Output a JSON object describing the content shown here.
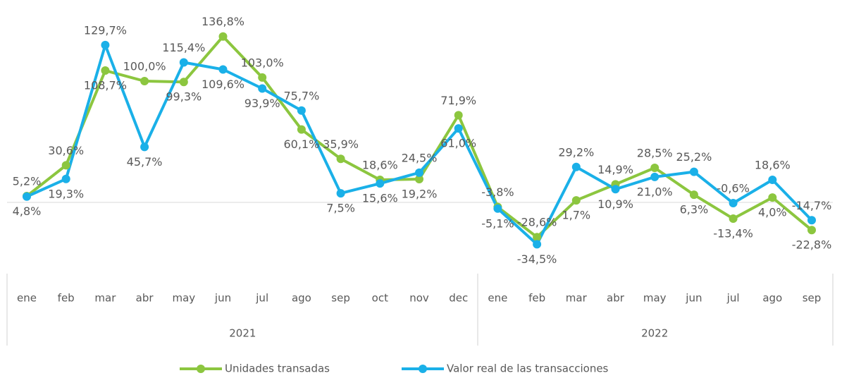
{
  "chart_data": {
    "type": "line",
    "category_groups": [
      {
        "name": "2021",
        "categories": [
          "ene",
          "feb",
          "mar",
          "abr",
          "may",
          "jun",
          "jul",
          "ago",
          "sep",
          "oct",
          "nov",
          "dec"
        ]
      },
      {
        "name": "2022",
        "categories": [
          "ene",
          "feb",
          "mar",
          "abr",
          "may",
          "jun",
          "jul",
          "ago",
          "sep"
        ]
      }
    ],
    "ylim": [
      -45,
      140
    ],
    "legend": "bottom",
    "series": [
      {
        "name": "Unidades transadas",
        "color": "#8cc63f",
        "values": [
          5.2,
          30.6,
          108.7,
          100.0,
          99.3,
          136.8,
          103.0,
          60.1,
          35.9,
          18.6,
          19.2,
          71.9,
          -3.8,
          -28.6,
          1.7,
          14.9,
          28.5,
          6.3,
          -13.4,
          4.0,
          -22.8
        ],
        "value_labels": [
          "5,2%",
          "30,6%",
          "108,7%",
          "100,0%",
          "99,3%",
          "136,8%",
          "103,0%",
          "60,1%",
          "35,9%",
          "18,6%",
          "19,2%",
          "71,9%",
          "-3,8%",
          "-28,6%",
          "1,7%",
          "14,9%",
          "28,5%",
          "6,3%",
          "-13,4%",
          "4,0%",
          "-22,8%"
        ]
      },
      {
        "name": "Valor real de las transacciones",
        "color": "#1ab0e8",
        "values": [
          4.8,
          19.3,
          129.7,
          45.7,
          115.4,
          109.6,
          93.9,
          75.7,
          7.5,
          15.6,
          24.5,
          61.0,
          -5.1,
          -34.5,
          29.2,
          10.9,
          21.0,
          25.2,
          -0.6,
          18.6,
          -14.7
        ],
        "value_labels": [
          "4,8%",
          "19,3%",
          "129,7%",
          "45,7%",
          "115,4%",
          "109,6%",
          "93,9%",
          "75,7%",
          "7,5%",
          "15,6%",
          "24,5%",
          "61,0%",
          "-5,1%",
          "-34,5%",
          "29,2%",
          "10,9%",
          "21,0%",
          "25,2%",
          "-0,6%",
          "18,6%",
          "-14,7%"
        ]
      }
    ]
  }
}
